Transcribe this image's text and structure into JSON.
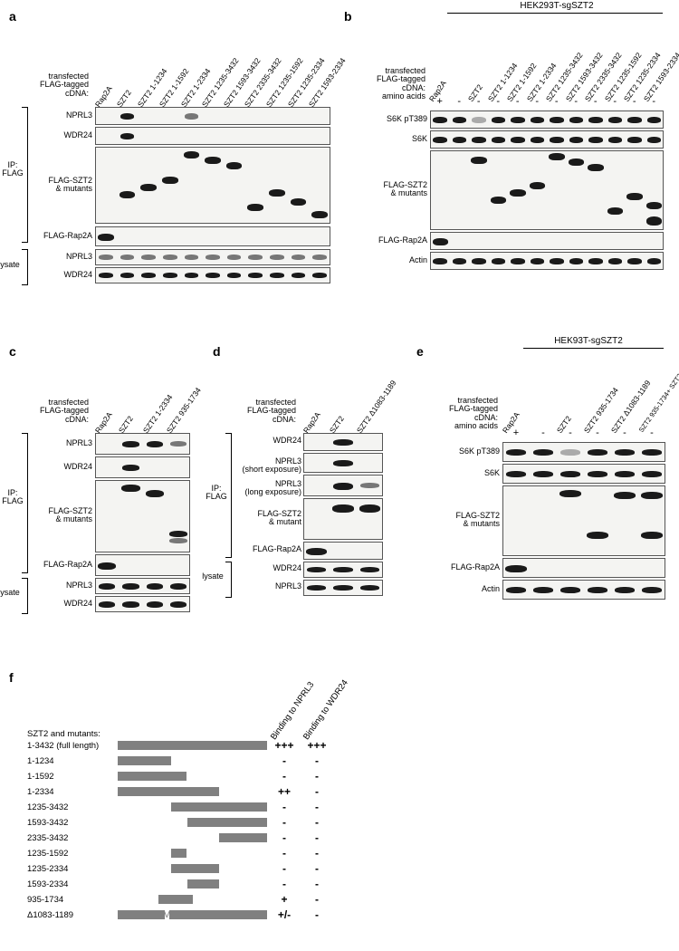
{
  "panels": {
    "a": {
      "label": "a",
      "header": "transfected\nFLAG-tagged\ncDNA:",
      "lanes": [
        "Rap2A",
        "SZT2",
        "SZT2 1-1234",
        "SZT2 1-1592",
        "SZT2 1-2334",
        "SZT2 1235-3432",
        "SZT2 1593-3432",
        "SZT2 2335-3432",
        "SZT2 1235-1592",
        "SZT2 1235-2334",
        "SZT2 1593-2334"
      ],
      "side_ip": "IP:\nFLAG",
      "side_lysate": "lysate",
      "rows": [
        "NPRL3",
        "WDR24",
        "FLAG-SZT2\n& mutants",
        "FLAG-Rap2A",
        "NPRL3",
        "WDR24"
      ]
    },
    "b": {
      "label": "b",
      "cell_line": "HEK293T-sgSZT2",
      "header": "transfected\nFLAG-tagged\ncDNA:\namino acids",
      "lanes": [
        "Rap2A",
        "",
        "SZT2",
        "SZT2 1-1234",
        "SZT2 1-1592",
        "SZT2 1-2334",
        "SZT2 1235-3432",
        "SZT2 1593-3432",
        "SZT2 2335-3432",
        "SZT2 1235-1592",
        "SZT2 1235-2334",
        "SZT2 1593-2334"
      ],
      "conditions": [
        "+",
        "-",
        "-",
        "-",
        "-",
        "-",
        "-",
        "-",
        "-",
        "-",
        "-",
        "-"
      ],
      "rows": [
        "S6K pT389",
        "S6K",
        "FLAG-SZT2\n& mutants",
        "FLAG-Rap2A",
        "Actin"
      ]
    },
    "c": {
      "label": "c",
      "header": "transfected\nFLAG-tagged\ncDNA:",
      "lanes": [
        "Rap2A",
        "SZT2",
        "SZT2 1-2334",
        "SZT2 935-1734"
      ],
      "side_ip": "IP:\nFLAG",
      "side_lysate": "lysate",
      "rows": [
        "NPRL3",
        "WDR24",
        "FLAG-SZT2\n& mutants",
        "FLAG-Rap2A",
        "NPRL3",
        "WDR24"
      ]
    },
    "d": {
      "label": "d",
      "header": "transfected\nFLAG-tagged\ncDNA:",
      "lanes": [
        "Rap2A",
        "SZT2",
        "SZT2 Δ1083-1189"
      ],
      "side_ip": "IP:\nFLAG",
      "side_lysate": "lysate",
      "rows": [
        "WDR24",
        "NPRL3\n(short exposure)",
        "NPRL3\n(long exposure)",
        "FLAG-SZT2\n& mutant",
        "FLAG-Rap2A",
        "WDR24",
        "NPRL3"
      ]
    },
    "e": {
      "label": "e",
      "cell_line": "HEK93T-sgSZT2",
      "header": "transfected\nFLAG-tagged\ncDNA:\namino acids",
      "lanes": [
        "Rap2A",
        "",
        "SZT2",
        "SZT2 935-1734",
        "SZT2 Δ1083-1189",
        "SZT2 935-1734+\nSZT2 Δ1083-1189"
      ],
      "conditions": [
        "+",
        "-",
        "-",
        "-",
        "-",
        "-"
      ],
      "rows": [
        "S6K pT389",
        "S6K",
        "FLAG-SZT2\n& mutants",
        "FLAG-Rap2A",
        "Actin"
      ]
    },
    "f": {
      "label": "f",
      "title": "SZT2 and mutants:",
      "col_headers": [
        "Binding to NPRL3",
        "Binding to WDR24"
      ],
      "scale_max": 3432,
      "rows": [
        {
          "name": "1-3432 (full length)",
          "start": 1,
          "end": 3432,
          "nprl3": "+++",
          "wdr24": "+++"
        },
        {
          "name": "1-1234",
          "start": 1,
          "end": 1234,
          "nprl3": "-",
          "wdr24": "-"
        },
        {
          "name": "1-1592",
          "start": 1,
          "end": 1592,
          "nprl3": "-",
          "wdr24": "-"
        },
        {
          "name": "1-2334",
          "start": 1,
          "end": 2334,
          "nprl3": "++",
          "wdr24": "-"
        },
        {
          "name": "1235-3432",
          "start": 1235,
          "end": 3432,
          "nprl3": "-",
          "wdr24": "-"
        },
        {
          "name": "1593-3432",
          "start": 1593,
          "end": 3432,
          "nprl3": "-",
          "wdr24": "-"
        },
        {
          "name": "2335-3432",
          "start": 2335,
          "end": 3432,
          "nprl3": "-",
          "wdr24": "-"
        },
        {
          "name": "1235-1592",
          "start": 1235,
          "end": 1592,
          "nprl3": "-",
          "wdr24": "-"
        },
        {
          "name": "1235-2334",
          "start": 1235,
          "end": 2334,
          "nprl3": "-",
          "wdr24": "-"
        },
        {
          "name": "1593-2334",
          "start": 1593,
          "end": 2334,
          "nprl3": "-",
          "wdr24": "-"
        },
        {
          "name": "935-1734",
          "start": 935,
          "end": 1734,
          "nprl3": "+",
          "wdr24": "-"
        },
        {
          "name": "Δ1083-1189",
          "start": 1,
          "end": 3432,
          "gap_start": 1083,
          "gap_end": 1189,
          "nprl3": "+/-",
          "wdr24": "-"
        }
      ],
      "bar_color": "#808080"
    }
  }
}
